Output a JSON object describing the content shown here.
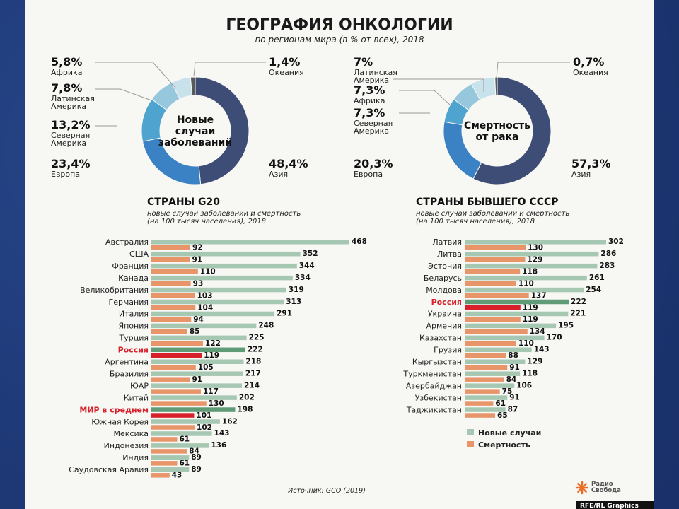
{
  "header": {
    "title": "ГЕОГРАФИЯ ОНКОЛОГИИ",
    "subtitle": "по регионам мира (в % от всех), 2018"
  },
  "colors": {
    "new_cases": "#a6c8b3",
    "deaths": "#e8956a",
    "russia_new": "#5f9b77",
    "russia_deaths": "#d8202b",
    "highlight_text": "#d8202b",
    "asia": "#3e4d75",
    "europe": "#3b82c4",
    "north_america": "#4ea3cf",
    "latin_america": "#96c7dc",
    "africa": "#c8e2ec",
    "oceania": "#5a5a5a"
  },
  "chart_data": [
    {
      "type": "pie",
      "subtype": "donut",
      "center_label": "Новые\nслучаи\nзаболеваний",
      "slices": [
        {
          "label": "Азия",
          "value": 48.4,
          "value_text": "48,4%",
          "color_key": "asia"
        },
        {
          "label": "Европа",
          "value": 23.4,
          "value_text": "23,4%",
          "color_key": "europe"
        },
        {
          "label": "Северная\nАмерика",
          "value": 13.2,
          "value_text": "13,2%",
          "color_key": "north_america"
        },
        {
          "label": "Латинская\nАмерика",
          "value": 7.8,
          "value_text": "7,8%",
          "color_key": "latin_america"
        },
        {
          "label": "Африка",
          "value": 5.8,
          "value_text": "5,8%",
          "color_key": "africa"
        },
        {
          "label": "Океания",
          "value": 1.4,
          "value_text": "1,4%",
          "color_key": "oceania"
        }
      ]
    },
    {
      "type": "pie",
      "subtype": "donut",
      "center_label": "Смертность\nот рака",
      "slices": [
        {
          "label": "Азия",
          "value": 57.3,
          "value_text": "57,3%",
          "color_key": "asia"
        },
        {
          "label": "Европа",
          "value": 20.3,
          "value_text": "20,3%",
          "color_key": "europe"
        },
        {
          "label": "Северная\nАмерика",
          "value": 7.3,
          "value_text": "7,3%",
          "color_key": "north_america"
        },
        {
          "label": "Латинская\nАмерика",
          "value": 7.0,
          "value_text": "7%",
          "color_key": "latin_america"
        },
        {
          "label": "Африка",
          "value": 7.3,
          "value_text": "7,3%",
          "color_key": "africa"
        },
        {
          "label": "Океания",
          "value": 0.7,
          "value_text": "0,7%",
          "color_key": "oceania"
        }
      ]
    },
    {
      "type": "bar",
      "orientation": "horizontal",
      "title": "СТРАНЫ G20",
      "subtitle": "новые случаи заболеваний и смертность\n(на 100 тысяч населения), 2018",
      "xlim": [
        0,
        468
      ],
      "highlight": [
        "Россия",
        "МИР в среднем"
      ],
      "categories": [
        "Австралия",
        "США",
        "Франция",
        "Канада",
        "Великобритания",
        "Германия",
        "Италия",
        "Япония",
        "Турция",
        "Россия",
        "Аргентина",
        "Бразилия",
        "ЮАР",
        "Китай",
        "МИР в среднем",
        "Южная Корея",
        "Мексика",
        "Индонезия",
        "Индия",
        "Саудовская Аравия"
      ],
      "series": [
        {
          "name": "Новые случаи",
          "values": [
            468,
            352,
            344,
            334,
            319,
            313,
            291,
            248,
            225,
            222,
            218,
            217,
            214,
            202,
            198,
            162,
            143,
            136,
            89,
            89
          ]
        },
        {
          "name": "Смертность",
          "values": [
            92,
            91,
            110,
            93,
            103,
            104,
            94,
            85,
            122,
            119,
            105,
            91,
            117,
            130,
            101,
            102,
            61,
            84,
            61,
            43
          ]
        }
      ]
    },
    {
      "type": "bar",
      "orientation": "horizontal",
      "title": "СТРАНЫ БЫВШЕГО СССР",
      "subtitle": "новые случаи заболеваний и смертность\n(на 100 тысяч населения), 2018",
      "xlim": [
        0,
        302
      ],
      "highlight": [
        "Россия"
      ],
      "categories": [
        "Латвия",
        "Литва",
        "Эстония",
        "Беларусь",
        "Молдова",
        "Россия",
        "Украина",
        "Армения",
        "Казахстан",
        "Грузия",
        "Кыргызстан",
        "Туркменистан",
        "Азербайджан",
        "Узбекистан",
        "Таджикистан"
      ],
      "series": [
        {
          "name": "Новые случаи",
          "values": [
            302,
            286,
            283,
            261,
            254,
            222,
            221,
            195,
            170,
            143,
            129,
            118,
            106,
            91,
            87
          ]
        },
        {
          "name": "Смертность",
          "values": [
            130,
            129,
            118,
            110,
            137,
            119,
            119,
            134,
            110,
            88,
            91,
            84,
            75,
            61,
            65
          ]
        }
      ],
      "legend": "bottom-right"
    }
  ],
  "footer": {
    "source": "Источник: GCO (2019)",
    "logo_text": "Радио\nСвобода",
    "credit": "RFE/RL Graphics"
  }
}
